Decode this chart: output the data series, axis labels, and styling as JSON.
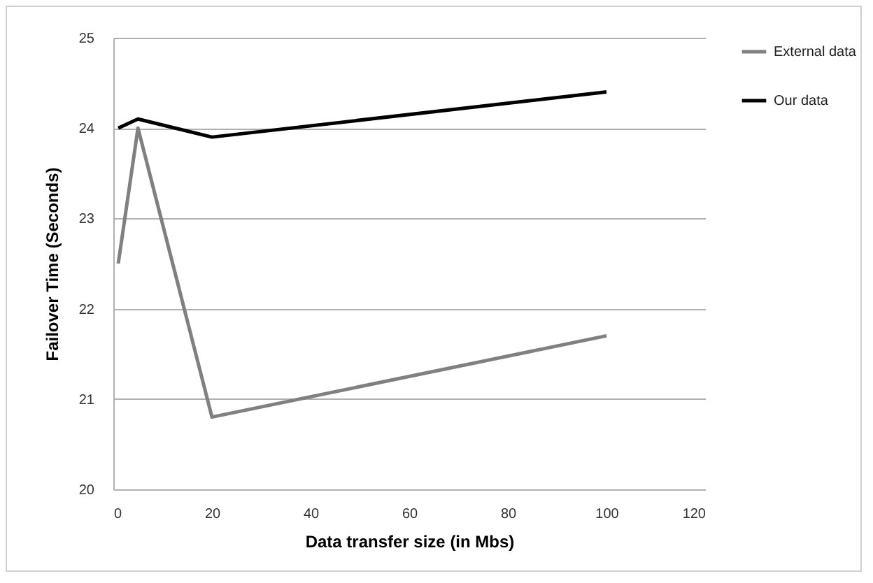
{
  "chart_data": {
    "type": "line",
    "xlabel": "Data transfer size (in Mbs)",
    "ylabel": "Failover Time (Seconds)",
    "x": [
      1,
      5,
      20,
      100
    ],
    "series": [
      {
        "name": "External data",
        "color": "#808080",
        "values": [
          22.5,
          24.0,
          20.8,
          21.7
        ]
      },
      {
        "name": "Our data",
        "color": "#000000",
        "values": [
          24.0,
          24.1,
          23.9,
          24.4
        ]
      }
    ],
    "xlim": [
      0,
      120
    ],
    "xticks": [
      0,
      20,
      40,
      60,
      80,
      100,
      120
    ],
    "ylim": [
      20,
      25
    ],
    "yticks": [
      20,
      21,
      22,
      23,
      24,
      25
    ],
    "grid": "y",
    "legend": "right",
    "marker": "none",
    "line_style": "solid"
  }
}
